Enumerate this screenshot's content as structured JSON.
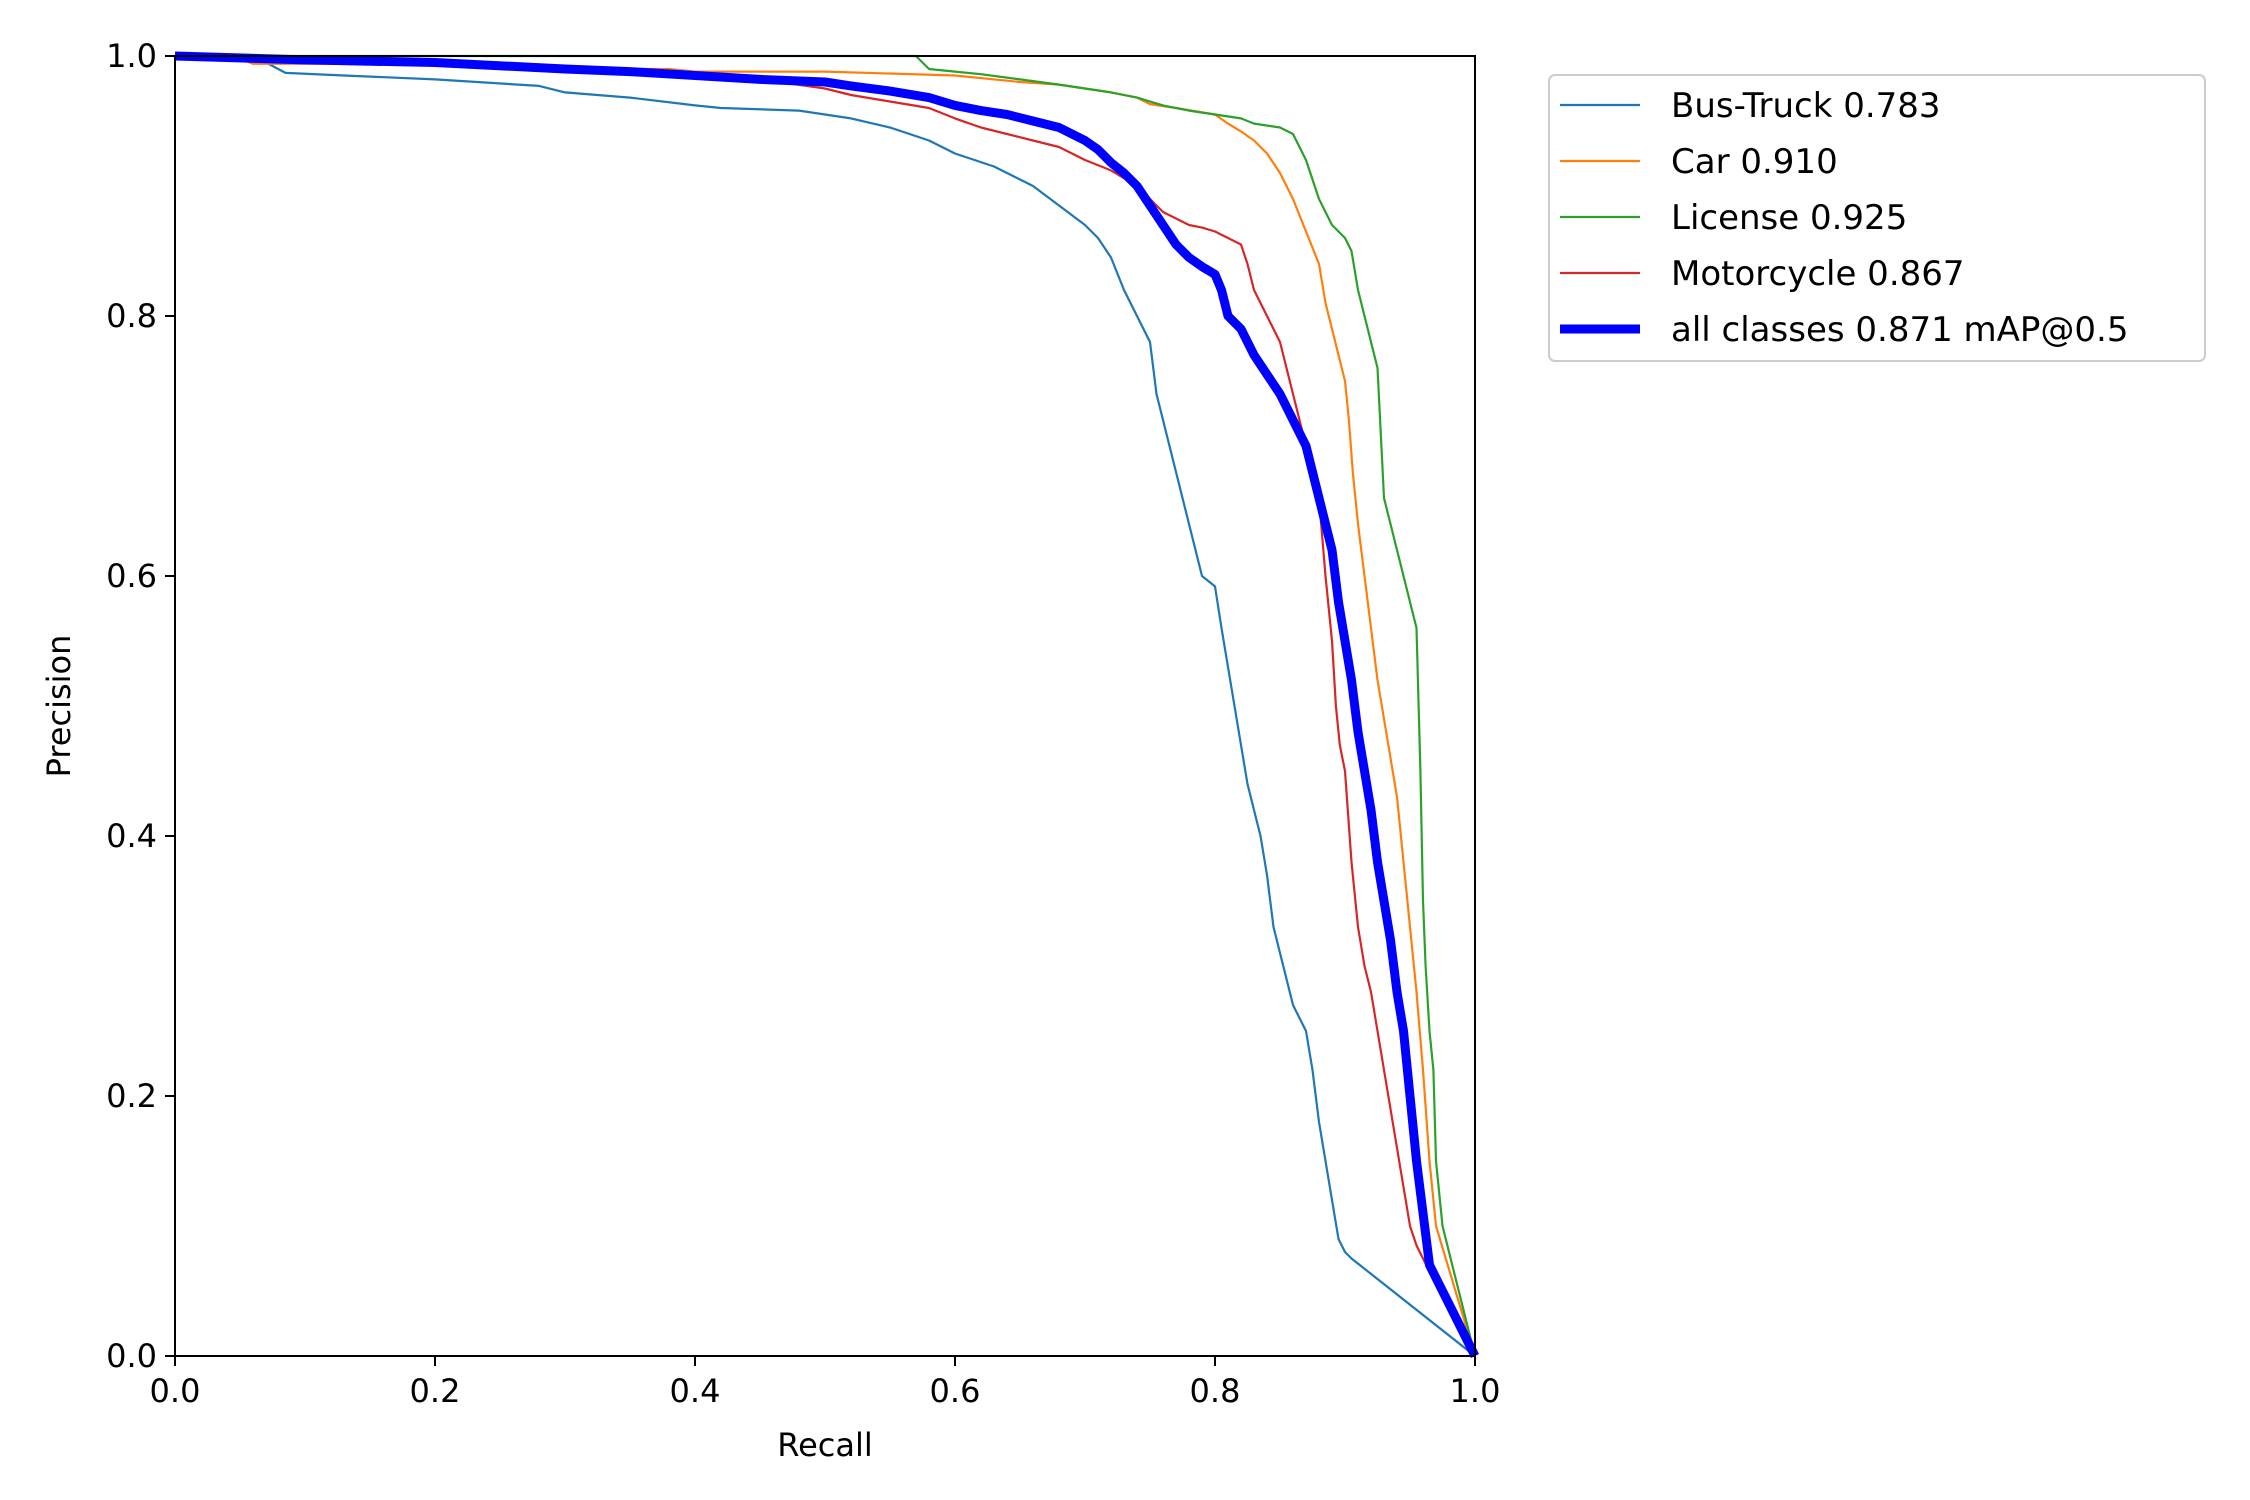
{
  "chart_data": {
    "type": "line",
    "xlabel": "Recall",
    "ylabel": "Precision",
    "xlim": [
      0,
      1
    ],
    "ylim": [
      0,
      1
    ],
    "xticks": [
      "0.0",
      "0.2",
      "0.4",
      "0.6",
      "0.8",
      "1.0"
    ],
    "yticks": [
      "0.0",
      "0.2",
      "0.4",
      "0.6",
      "0.8",
      "1.0"
    ],
    "grid": false,
    "legend_position": "outside-top-right",
    "series": [
      {
        "name": "Bus-Truck 0.783",
        "color": "#1f77b4",
        "linewidth": "thin",
        "points": [
          [
            0,
            1.0
          ],
          [
            0.07,
            0.995
          ],
          [
            0.085,
            0.987
          ],
          [
            0.13,
            0.985
          ],
          [
            0.2,
            0.982
          ],
          [
            0.28,
            0.977
          ],
          [
            0.3,
            0.972
          ],
          [
            0.35,
            0.968
          ],
          [
            0.4,
            0.962
          ],
          [
            0.42,
            0.96
          ],
          [
            0.48,
            0.958
          ],
          [
            0.52,
            0.952
          ],
          [
            0.55,
            0.945
          ],
          [
            0.58,
            0.935
          ],
          [
            0.6,
            0.925
          ],
          [
            0.63,
            0.915
          ],
          [
            0.66,
            0.9
          ],
          [
            0.68,
            0.885
          ],
          [
            0.7,
            0.87
          ],
          [
            0.71,
            0.86
          ],
          [
            0.72,
            0.845
          ],
          [
            0.73,
            0.82
          ],
          [
            0.74,
            0.8
          ],
          [
            0.75,
            0.78
          ],
          [
            0.755,
            0.74
          ],
          [
            0.76,
            0.72
          ],
          [
            0.765,
            0.7
          ],
          [
            0.77,
            0.68
          ],
          [
            0.775,
            0.66
          ],
          [
            0.78,
            0.64
          ],
          [
            0.785,
            0.62
          ],
          [
            0.79,
            0.6
          ],
          [
            0.8,
            0.592
          ],
          [
            0.805,
            0.56
          ],
          [
            0.81,
            0.53
          ],
          [
            0.815,
            0.5
          ],
          [
            0.82,
            0.47
          ],
          [
            0.825,
            0.44
          ],
          [
            0.83,
            0.42
          ],
          [
            0.835,
            0.4
          ],
          [
            0.84,
            0.37
          ],
          [
            0.845,
            0.33
          ],
          [
            0.85,
            0.31
          ],
          [
            0.855,
            0.29
          ],
          [
            0.86,
            0.27
          ],
          [
            0.865,
            0.26
          ],
          [
            0.87,
            0.25
          ],
          [
            0.875,
            0.22
          ],
          [
            0.88,
            0.18
          ],
          [
            0.885,
            0.15
          ],
          [
            0.89,
            0.12
          ],
          [
            0.895,
            0.09
          ],
          [
            0.9,
            0.08
          ],
          [
            0.905,
            0.075
          ],
          [
            1.0,
            0.0
          ]
        ]
      },
      {
        "name": "Car 0.910",
        "color": "#ff7f0e",
        "linewidth": "thin",
        "points": [
          [
            0,
            1.0
          ],
          [
            0.05,
            0.998
          ],
          [
            0.06,
            0.994
          ],
          [
            0.2,
            0.994
          ],
          [
            0.3,
            0.99
          ],
          [
            0.38,
            0.99
          ],
          [
            0.4,
            0.988
          ],
          [
            0.5,
            0.988
          ],
          [
            0.6,
            0.985
          ],
          [
            0.65,
            0.98
          ],
          [
            0.68,
            0.978
          ],
          [
            0.7,
            0.975
          ],
          [
            0.72,
            0.972
          ],
          [
            0.74,
            0.968
          ],
          [
            0.75,
            0.963
          ],
          [
            0.77,
            0.96
          ],
          [
            0.8,
            0.955
          ],
          [
            0.81,
            0.948
          ],
          [
            0.82,
            0.942
          ],
          [
            0.83,
            0.935
          ],
          [
            0.84,
            0.925
          ],
          [
            0.85,
            0.91
          ],
          [
            0.86,
            0.89
          ],
          [
            0.87,
            0.865
          ],
          [
            0.88,
            0.84
          ],
          [
            0.885,
            0.81
          ],
          [
            0.89,
            0.79
          ],
          [
            0.895,
            0.77
          ],
          [
            0.9,
            0.75
          ],
          [
            0.903,
            0.72
          ],
          [
            0.906,
            0.68
          ],
          [
            0.91,
            0.64
          ],
          [
            0.915,
            0.6
          ],
          [
            0.92,
            0.56
          ],
          [
            0.925,
            0.52
          ],
          [
            0.93,
            0.49
          ],
          [
            0.935,
            0.46
          ],
          [
            0.94,
            0.43
          ],
          [
            0.945,
            0.38
          ],
          [
            0.95,
            0.33
          ],
          [
            0.955,
            0.28
          ],
          [
            0.96,
            0.22
          ],
          [
            0.965,
            0.15
          ],
          [
            0.97,
            0.1
          ],
          [
            1.0,
            0.0
          ]
        ]
      },
      {
        "name": "License 0.925",
        "color": "#2ca02c",
        "linewidth": "thin",
        "points": [
          [
            0,
            1.0
          ],
          [
            0.57,
            1.0
          ],
          [
            0.58,
            0.99
          ],
          [
            0.6,
            0.988
          ],
          [
            0.62,
            0.986
          ],
          [
            0.65,
            0.982
          ],
          [
            0.68,
            0.978
          ],
          [
            0.7,
            0.975
          ],
          [
            0.72,
            0.972
          ],
          [
            0.74,
            0.968
          ],
          [
            0.76,
            0.962
          ],
          [
            0.78,
            0.958
          ],
          [
            0.8,
            0.955
          ],
          [
            0.82,
            0.952
          ],
          [
            0.83,
            0.948
          ],
          [
            0.85,
            0.945
          ],
          [
            0.86,
            0.94
          ],
          [
            0.865,
            0.93
          ],
          [
            0.87,
            0.92
          ],
          [
            0.875,
            0.905
          ],
          [
            0.88,
            0.89
          ],
          [
            0.885,
            0.88
          ],
          [
            0.89,
            0.87
          ],
          [
            0.895,
            0.865
          ],
          [
            0.9,
            0.86
          ],
          [
            0.905,
            0.85
          ],
          [
            0.91,
            0.82
          ],
          [
            0.915,
            0.8
          ],
          [
            0.92,
            0.78
          ],
          [
            0.925,
            0.76
          ],
          [
            0.928,
            0.7
          ],
          [
            0.93,
            0.66
          ],
          [
            0.935,
            0.64
          ],
          [
            0.94,
            0.62
          ],
          [
            0.945,
            0.6
          ],
          [
            0.95,
            0.58
          ],
          [
            0.955,
            0.56
          ],
          [
            0.958,
            0.45
          ],
          [
            0.96,
            0.35
          ],
          [
            0.962,
            0.3
          ],
          [
            0.965,
            0.25
          ],
          [
            0.968,
            0.22
          ],
          [
            0.97,
            0.15
          ],
          [
            0.975,
            0.1
          ],
          [
            1.0,
            0.0
          ]
        ]
      },
      {
        "name": "Motorcycle 0.867",
        "color": "#d62728",
        "linewidth": "thin",
        "points": [
          [
            0,
            1.0
          ],
          [
            0.1,
            0.998
          ],
          [
            0.2,
            0.994
          ],
          [
            0.3,
            0.99
          ],
          [
            0.4,
            0.985
          ],
          [
            0.45,
            0.982
          ],
          [
            0.5,
            0.975
          ],
          [
            0.52,
            0.97
          ],
          [
            0.55,
            0.965
          ],
          [
            0.58,
            0.96
          ],
          [
            0.6,
            0.952
          ],
          [
            0.62,
            0.945
          ],
          [
            0.64,
            0.94
          ],
          [
            0.66,
            0.935
          ],
          [
            0.68,
            0.93
          ],
          [
            0.7,
            0.92
          ],
          [
            0.72,
            0.912
          ],
          [
            0.74,
            0.9
          ],
          [
            0.75,
            0.89
          ],
          [
            0.76,
            0.88
          ],
          [
            0.77,
            0.875
          ],
          [
            0.78,
            0.87
          ],
          [
            0.79,
            0.868
          ],
          [
            0.8,
            0.865
          ],
          [
            0.81,
            0.86
          ],
          [
            0.82,
            0.855
          ],
          [
            0.825,
            0.84
          ],
          [
            0.83,
            0.82
          ],
          [
            0.835,
            0.81
          ],
          [
            0.84,
            0.8
          ],
          [
            0.845,
            0.79
          ],
          [
            0.85,
            0.78
          ],
          [
            0.855,
            0.76
          ],
          [
            0.86,
            0.74
          ],
          [
            0.865,
            0.72
          ],
          [
            0.87,
            0.7
          ],
          [
            0.875,
            0.68
          ],
          [
            0.88,
            0.66
          ],
          [
            0.885,
            0.6
          ],
          [
            0.89,
            0.55
          ],
          [
            0.893,
            0.5
          ],
          [
            0.896,
            0.47
          ],
          [
            0.9,
            0.45
          ],
          [
            0.905,
            0.38
          ],
          [
            0.91,
            0.33
          ],
          [
            0.915,
            0.3
          ],
          [
            0.92,
            0.28
          ],
          [
            0.925,
            0.25
          ],
          [
            0.93,
            0.22
          ],
          [
            0.935,
            0.19
          ],
          [
            0.94,
            0.16
          ],
          [
            0.945,
            0.13
          ],
          [
            0.95,
            0.1
          ],
          [
            0.955,
            0.085
          ],
          [
            0.96,
            0.075
          ],
          [
            0.965,
            0.065
          ],
          [
            1.0,
            0.0
          ]
        ]
      },
      {
        "name": "all classes 0.871 mAP@0.5",
        "color": "#0000ff",
        "linewidth": "thick",
        "points": [
          [
            0,
            1.0
          ],
          [
            0.1,
            0.997
          ],
          [
            0.2,
            0.995
          ],
          [
            0.3,
            0.99
          ],
          [
            0.35,
            0.988
          ],
          [
            0.4,
            0.985
          ],
          [
            0.45,
            0.982
          ],
          [
            0.5,
            0.98
          ],
          [
            0.52,
            0.977
          ],
          [
            0.55,
            0.973
          ],
          [
            0.58,
            0.968
          ],
          [
            0.6,
            0.962
          ],
          [
            0.62,
            0.958
          ],
          [
            0.64,
            0.955
          ],
          [
            0.66,
            0.95
          ],
          [
            0.68,
            0.945
          ],
          [
            0.7,
            0.935
          ],
          [
            0.71,
            0.928
          ],
          [
            0.72,
            0.918
          ],
          [
            0.73,
            0.91
          ],
          [
            0.74,
            0.9
          ],
          [
            0.75,
            0.885
          ],
          [
            0.76,
            0.87
          ],
          [
            0.77,
            0.855
          ],
          [
            0.78,
            0.845
          ],
          [
            0.79,
            0.838
          ],
          [
            0.8,
            0.832
          ],
          [
            0.805,
            0.82
          ],
          [
            0.81,
            0.8
          ],
          [
            0.82,
            0.79
          ],
          [
            0.83,
            0.77
          ],
          [
            0.84,
            0.755
          ],
          [
            0.85,
            0.74
          ],
          [
            0.86,
            0.72
          ],
          [
            0.87,
            0.7
          ],
          [
            0.875,
            0.68
          ],
          [
            0.88,
            0.66
          ],
          [
            0.885,
            0.64
          ],
          [
            0.89,
            0.62
          ],
          [
            0.895,
            0.58
          ],
          [
            0.9,
            0.55
          ],
          [
            0.905,
            0.52
          ],
          [
            0.91,
            0.48
          ],
          [
            0.915,
            0.45
          ],
          [
            0.92,
            0.42
          ],
          [
            0.925,
            0.38
          ],
          [
            0.93,
            0.35
          ],
          [
            0.935,
            0.32
          ],
          [
            0.94,
            0.28
          ],
          [
            0.945,
            0.25
          ],
          [
            0.95,
            0.2
          ],
          [
            0.955,
            0.15
          ],
          [
            0.96,
            0.11
          ],
          [
            0.965,
            0.07
          ],
          [
            0.97,
            0.06
          ],
          [
            1.0,
            0.0
          ]
        ]
      }
    ]
  }
}
